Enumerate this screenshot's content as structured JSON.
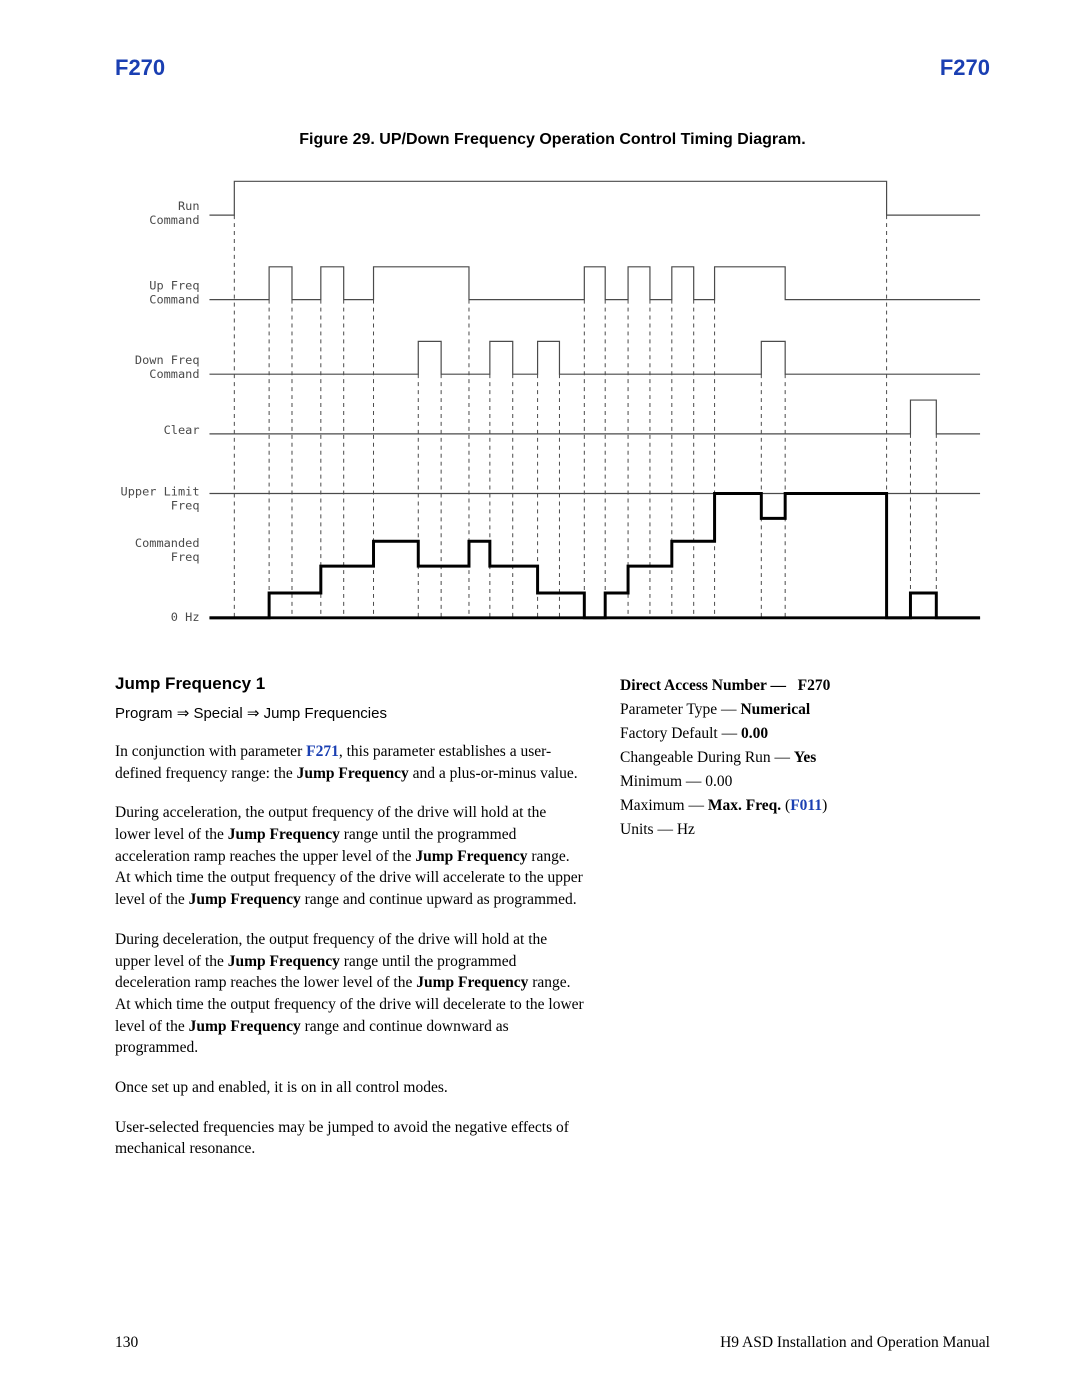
{
  "header": {
    "left": "F270",
    "right": "F270",
    "color": "#1a3fb2"
  },
  "figure": {
    "caption": "Figure 29. UP/Down Frequency Operation Control Timing Diagram.",
    "signal_labels": [
      "Run\nCommand",
      "Up Freq\nCommand",
      "Down Freq\nCommand",
      "Clear",
      "Upper Limit\nFreq",
      "Commanded\nFreq",
      "0 Hz"
    ],
    "stroke_color": "#4a4a4a",
    "waveform_stroke": "#000000",
    "guide_dash": "4 4",
    "thick_stroke_width": 3,
    "thin_stroke_width": 1.2,
    "font_family": "monospace",
    "label_fontsize": 12
  },
  "section": {
    "title": "Jump Frequency 1",
    "breadcrumb": {
      "p1": "Program",
      "p2": "Special",
      "p3": "Jump Frequencies",
      "arrow": "⇒"
    },
    "para1_a": "In conjunction with parameter ",
    "para1_link": "F271",
    "para1_b": ", this parameter establishes a user-defined frequency range: the ",
    "para1_bold": "Jump Frequency",
    "para1_c": " and a plus-or-minus value.",
    "para2": "During acceleration, the output frequency of the drive will hold at the lower level of the <b>Jump Frequency</b> range until the programmed acceleration ramp reaches the upper level of the <b>Jump Frequency</b> range. At which time the output frequency of the drive will accelerate to the upper level of the <b>Jump Frequency</b> range and continue upward as programmed.",
    "para3": "During deceleration, the output frequency of the drive will hold at the upper level of the <b>Jump Frequency</b> range until the programmed deceleration ramp reaches the lower level of the <b>Jump Frequency</b> range. At which time the output frequency of the drive will decelerate to the lower level of the <b>Jump Frequency</b> range and continue downward as programmed.",
    "para4": "Once set up and enabled, it is on in all control modes.",
    "para5": "User-selected frequencies may be jumped to avoid the negative effects of mechanical resonance."
  },
  "side": {
    "dan_label": "Direct Access Number —",
    "dan_value": "F270",
    "ptype_label": "Parameter Type —",
    "ptype_value": "Numerical",
    "fdef_label": "Factory Default —",
    "fdef_value": "0.00",
    "chg_label": "Changeable During Run —",
    "chg_value": "Yes",
    "min_label": "Minimum — 0.00",
    "max_label": "Maximum —",
    "max_value_a": "Max. Freq.",
    "max_value_link": "F011",
    "units_label": "Units — Hz"
  },
  "footer": {
    "page": "130",
    "manual": "H9 ASD Installation and Operation Manual"
  }
}
